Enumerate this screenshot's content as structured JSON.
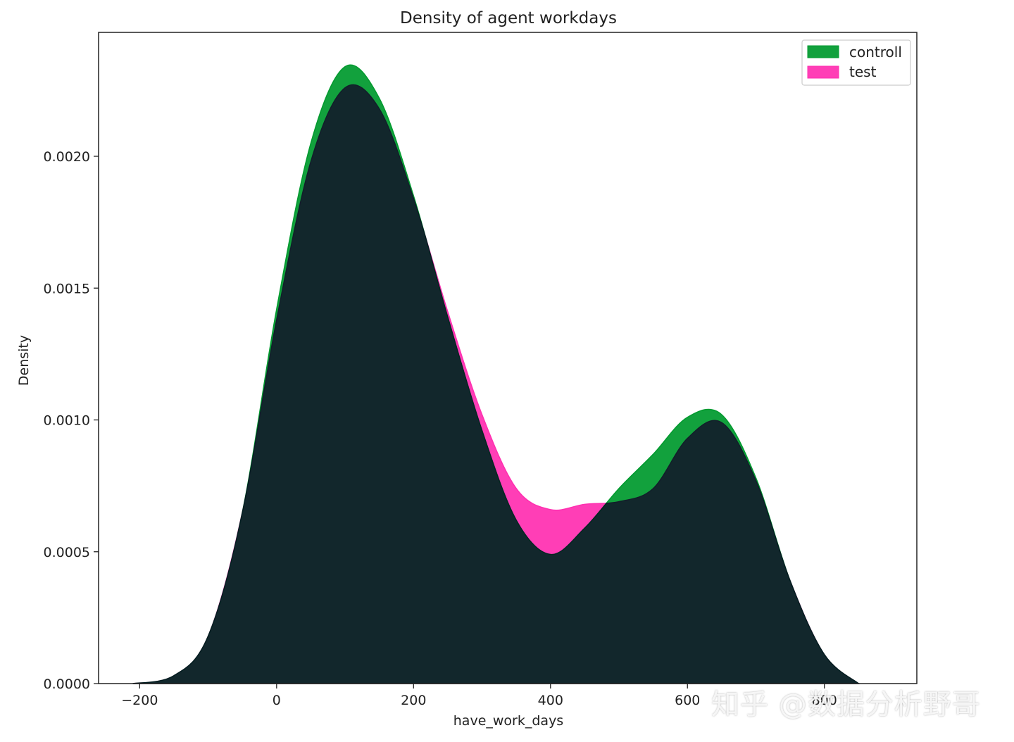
{
  "chart_data": {
    "type": "area",
    "title": "Density  of agent workdays",
    "xlabel": "have_work_days",
    "ylabel": "Density",
    "xlim": [
      -260,
      935
    ],
    "ylim": [
      0,
      0.00247
    ],
    "x_ticks": [
      -200,
      0,
      200,
      400,
      600,
      800
    ],
    "x_tick_labels": [
      "−200",
      "0",
      "200",
      "400",
      "600",
      "800"
    ],
    "y_ticks": [
      0,
      0.0005,
      0.001,
      0.0015,
      0.002
    ],
    "y_tick_labels": [
      "0.0000",
      "0.0005",
      "0.0010",
      "0.0015",
      "0.0020"
    ],
    "grid": false,
    "legend_position": "top-right",
    "x": [
      -210,
      -150,
      -100,
      -50,
      0,
      50,
      100,
      150,
      200,
      250,
      300,
      350,
      400,
      450,
      500,
      550,
      600,
      650,
      700,
      750,
      800,
      850
    ],
    "series": [
      {
        "name": "controll",
        "color": "#009a2e",
        "values": [
          0.0,
          3e-05,
          0.00018,
          0.00065,
          0.00142,
          0.00205,
          0.00234,
          0.00222,
          0.00185,
          0.00139,
          0.00096,
          0.00062,
          0.00049,
          0.00059,
          0.00074,
          0.00087,
          0.00101,
          0.00102,
          0.00078,
          0.00039,
          0.00011,
          0.0
        ]
      },
      {
        "name": "test",
        "color": "#ff2fb0",
        "values": [
          0.0,
          3e-05,
          0.00018,
          0.00065,
          0.00138,
          0.00198,
          0.00226,
          0.00218,
          0.00184,
          0.00141,
          0.00102,
          0.00074,
          0.00066,
          0.00068,
          0.00069,
          0.00074,
          0.00093,
          0.00099,
          0.00077,
          0.00039,
          0.00011,
          0.0
        ]
      }
    ]
  },
  "watermark": "知乎 @数据分析野哥"
}
